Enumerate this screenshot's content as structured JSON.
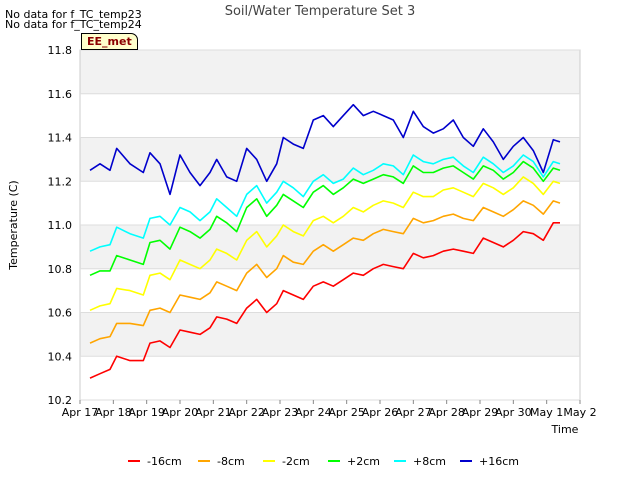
{
  "header": {
    "no_data_1": "No data for f_TC_temp23",
    "no_data_2": "No data for f_TC_temp24",
    "badge": "EE_met"
  },
  "chart_data": {
    "type": "line",
    "title": "Soil/Water Temperature Set 3",
    "xlabel": "Time",
    "ylabel": "Temperature (C)",
    "ylim": [
      10.2,
      11.8
    ],
    "yticks": [
      "10.2",
      "10.4",
      "10.6",
      "10.8",
      "11.0",
      "11.2",
      "11.4",
      "11.6",
      "11.8"
    ],
    "xlim": [
      17,
      32
    ],
    "xticks": [
      "Apr 17",
      "Apr 18",
      "Apr 19",
      "Apr 20",
      "Apr 21",
      "Apr 22",
      "Apr 23",
      "Apr 24",
      "Apr 25",
      "Apr 26",
      "Apr 27",
      "Apr 28",
      "Apr 29",
      "Apr 30",
      "May 1",
      "May 2"
    ],
    "grid": true,
    "legend_position": "bottom",
    "series": [
      {
        "name": "-16cm",
        "color": "#ff0000",
        "x": [
          17.3,
          17.6,
          17.9,
          18.1,
          18.5,
          18.9,
          19.1,
          19.4,
          19.7,
          20.0,
          20.3,
          20.6,
          20.9,
          21.1,
          21.4,
          21.7,
          22.0,
          22.3,
          22.6,
          22.9,
          23.1,
          23.4,
          23.7,
          24.0,
          24.3,
          24.6,
          24.9,
          25.2,
          25.5,
          25.8,
          26.1,
          26.4,
          26.7,
          27.0,
          27.3,
          27.6,
          27.9,
          28.2,
          28.5,
          28.8,
          29.1,
          29.4,
          29.7,
          30.0,
          30.3,
          30.6,
          30.9,
          31.2,
          31.4
        ],
        "y": [
          10.3,
          10.32,
          10.34,
          10.4,
          10.38,
          10.38,
          10.46,
          10.47,
          10.44,
          10.52,
          10.51,
          10.5,
          10.53,
          10.58,
          10.57,
          10.55,
          10.62,
          10.66,
          10.6,
          10.64,
          10.7,
          10.68,
          10.66,
          10.72,
          10.74,
          10.72,
          10.75,
          10.78,
          10.77,
          10.8,
          10.82,
          10.81,
          10.8,
          10.87,
          10.85,
          10.86,
          10.88,
          10.89,
          10.88,
          10.87,
          10.94,
          10.92,
          10.9,
          10.93,
          10.97,
          10.96,
          10.93,
          11.01,
          11.01
        ]
      },
      {
        "name": "-8cm",
        "color": "#ffa500",
        "x": [
          17.3,
          17.6,
          17.9,
          18.1,
          18.5,
          18.9,
          19.1,
          19.4,
          19.7,
          20.0,
          20.3,
          20.6,
          20.9,
          21.1,
          21.4,
          21.7,
          22.0,
          22.3,
          22.6,
          22.9,
          23.1,
          23.4,
          23.7,
          24.0,
          24.3,
          24.6,
          24.9,
          25.2,
          25.5,
          25.8,
          26.1,
          26.4,
          26.7,
          27.0,
          27.3,
          27.6,
          27.9,
          28.2,
          28.5,
          28.8,
          29.1,
          29.4,
          29.7,
          30.0,
          30.3,
          30.6,
          30.9,
          31.2,
          31.4
        ],
        "y": [
          10.46,
          10.48,
          10.49,
          10.55,
          10.55,
          10.54,
          10.61,
          10.62,
          10.6,
          10.68,
          10.67,
          10.66,
          10.69,
          10.74,
          10.72,
          10.7,
          10.78,
          10.82,
          10.76,
          10.8,
          10.86,
          10.83,
          10.82,
          10.88,
          10.91,
          10.88,
          10.91,
          10.94,
          10.93,
          10.96,
          10.98,
          10.97,
          10.96,
          11.03,
          11.01,
          11.02,
          11.04,
          11.05,
          11.03,
          11.02,
          11.08,
          11.06,
          11.04,
          11.07,
          11.11,
          11.09,
          11.05,
          11.11,
          11.1
        ]
      },
      {
        "name": "-2cm",
        "color": "#ffff00",
        "x": [
          17.3,
          17.6,
          17.9,
          18.1,
          18.5,
          18.9,
          19.1,
          19.4,
          19.7,
          20.0,
          20.3,
          20.6,
          20.9,
          21.1,
          21.4,
          21.7,
          22.0,
          22.3,
          22.6,
          22.9,
          23.1,
          23.4,
          23.7,
          24.0,
          24.3,
          24.6,
          24.9,
          25.2,
          25.5,
          25.8,
          26.1,
          26.4,
          26.7,
          27.0,
          27.3,
          27.6,
          27.9,
          28.2,
          28.5,
          28.8,
          29.1,
          29.4,
          29.7,
          30.0,
          30.3,
          30.6,
          30.9,
          31.2,
          31.4
        ],
        "y": [
          10.61,
          10.63,
          10.64,
          10.71,
          10.7,
          10.68,
          10.77,
          10.78,
          10.75,
          10.84,
          10.82,
          10.8,
          10.84,
          10.89,
          10.87,
          10.84,
          10.93,
          10.97,
          10.9,
          10.95,
          11.0,
          10.97,
          10.95,
          11.02,
          11.04,
          11.01,
          11.04,
          11.08,
          11.06,
          11.09,
          11.11,
          11.1,
          11.08,
          11.15,
          11.13,
          11.13,
          11.16,
          11.17,
          11.15,
          11.13,
          11.19,
          11.17,
          11.14,
          11.17,
          11.22,
          11.19,
          11.14,
          11.2,
          11.19
        ]
      },
      {
        "name": "+2cm",
        "color": "#00ff00",
        "x": [
          17.3,
          17.6,
          17.9,
          18.1,
          18.5,
          18.9,
          19.1,
          19.4,
          19.7,
          20.0,
          20.3,
          20.6,
          20.9,
          21.1,
          21.4,
          21.7,
          22.0,
          22.3,
          22.6,
          22.9,
          23.1,
          23.4,
          23.7,
          24.0,
          24.3,
          24.6,
          24.9,
          25.2,
          25.5,
          25.8,
          26.1,
          26.4,
          26.7,
          27.0,
          27.3,
          27.6,
          27.9,
          28.2,
          28.5,
          28.8,
          29.1,
          29.4,
          29.7,
          30.0,
          30.3,
          30.6,
          30.9,
          31.2,
          31.4
        ],
        "y": [
          10.77,
          10.79,
          10.79,
          10.86,
          10.84,
          10.82,
          10.92,
          10.93,
          10.89,
          10.99,
          10.97,
          10.94,
          10.98,
          11.04,
          11.01,
          10.97,
          11.08,
          11.12,
          11.04,
          11.09,
          11.14,
          11.11,
          11.08,
          11.15,
          11.18,
          11.14,
          11.17,
          11.21,
          11.19,
          11.21,
          11.23,
          11.22,
          11.19,
          11.27,
          11.24,
          11.24,
          11.26,
          11.27,
          11.24,
          11.21,
          11.27,
          11.25,
          11.21,
          11.24,
          11.29,
          11.26,
          11.2,
          11.26,
          11.25
        ]
      },
      {
        "name": "+8cm",
        "color": "#00ffff",
        "x": [
          17.3,
          17.6,
          17.9,
          18.1,
          18.5,
          18.9,
          19.1,
          19.4,
          19.7,
          20.0,
          20.3,
          20.6,
          20.9,
          21.1,
          21.4,
          21.7,
          22.0,
          22.3,
          22.6,
          22.9,
          23.1,
          23.4,
          23.7,
          24.0,
          24.3,
          24.6,
          24.9,
          25.2,
          25.5,
          25.8,
          26.1,
          26.4,
          26.7,
          27.0,
          27.3,
          27.6,
          27.9,
          28.2,
          28.5,
          28.8,
          29.1,
          29.4,
          29.7,
          30.0,
          30.3,
          30.6,
          30.9,
          31.2,
          31.4
        ],
        "y": [
          10.88,
          10.9,
          10.91,
          10.99,
          10.96,
          10.94,
          11.03,
          11.04,
          11.0,
          11.08,
          11.06,
          11.02,
          11.06,
          11.12,
          11.08,
          11.04,
          11.14,
          11.18,
          11.1,
          11.15,
          11.2,
          11.17,
          11.13,
          11.2,
          11.23,
          11.19,
          11.21,
          11.26,
          11.23,
          11.25,
          11.28,
          11.27,
          11.23,
          11.32,
          11.29,
          11.28,
          11.3,
          11.31,
          11.27,
          11.24,
          11.31,
          11.28,
          11.24,
          11.27,
          11.32,
          11.29,
          11.22,
          11.29,
          11.28
        ]
      },
      {
        "name": "+16cm",
        "color": "#0000cc",
        "x": [
          17.3,
          17.6,
          17.9,
          18.1,
          18.5,
          18.9,
          19.1,
          19.4,
          19.7,
          20.0,
          20.3,
          20.6,
          20.9,
          21.1,
          21.4,
          21.7,
          22.0,
          22.3,
          22.6,
          22.9,
          23.1,
          23.4,
          23.7,
          24.0,
          24.3,
          24.6,
          24.9,
          25.2,
          25.5,
          25.8,
          26.1,
          26.4,
          26.7,
          27.0,
          27.3,
          27.6,
          27.9,
          28.2,
          28.5,
          28.8,
          29.1,
          29.4,
          29.7,
          30.0,
          30.3,
          30.6,
          30.9,
          31.2,
          31.4
        ],
        "y": [
          11.25,
          11.28,
          11.25,
          11.35,
          11.28,
          11.24,
          11.33,
          11.28,
          11.14,
          11.32,
          11.24,
          11.18,
          11.24,
          11.3,
          11.22,
          11.2,
          11.35,
          11.3,
          11.2,
          11.28,
          11.4,
          11.37,
          11.35,
          11.48,
          11.5,
          11.45,
          11.5,
          11.55,
          11.5,
          11.52,
          11.5,
          11.48,
          11.4,
          11.52,
          11.45,
          11.42,
          11.44,
          11.48,
          11.4,
          11.36,
          11.44,
          11.38,
          11.3,
          11.36,
          11.4,
          11.34,
          11.24,
          11.39,
          11.38
        ]
      }
    ]
  }
}
